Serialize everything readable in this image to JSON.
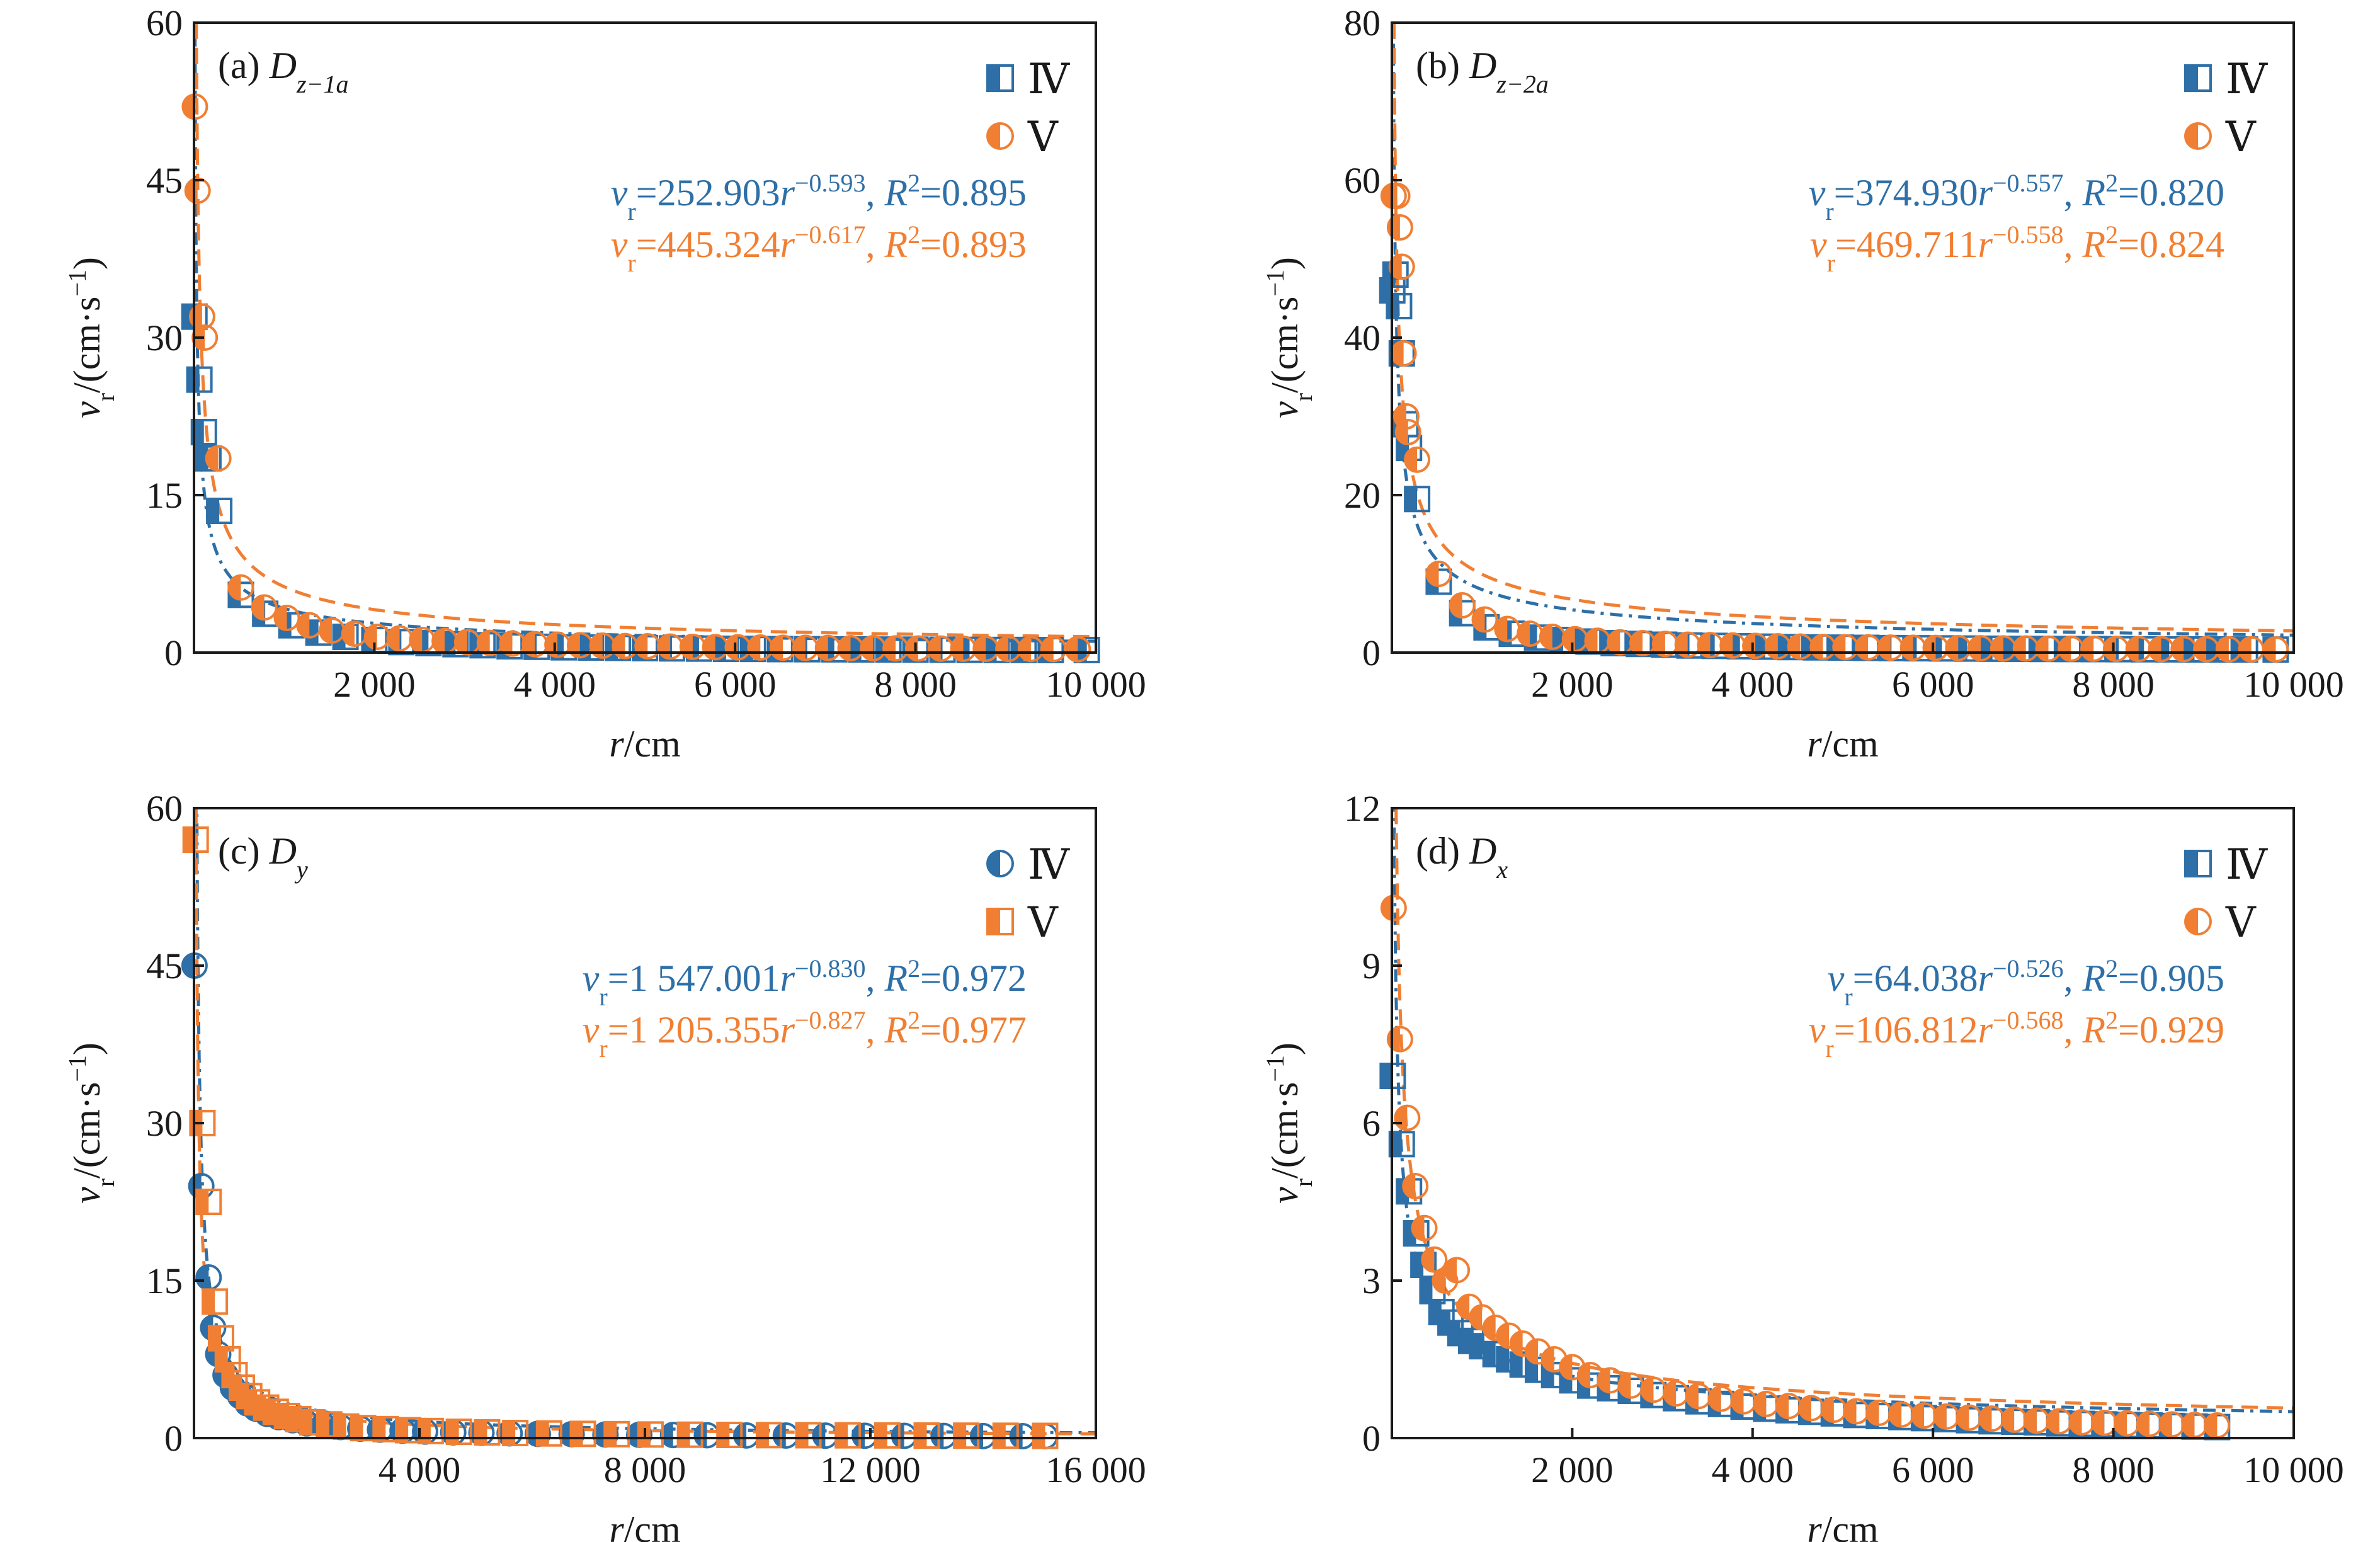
{
  "colors": {
    "series_IV": "#2E6FA7",
    "series_V": "#F07F33",
    "axis": "#1a1a1a"
  },
  "legend_labels": [
    "Ⅳ",
    "Ⅴ"
  ],
  "chart_data": [
    {
      "id": "a",
      "type": "scatter",
      "title": {
        "prefix": "(a) ",
        "var": "D",
        "sub": "z−1a"
      },
      "xlabel": {
        "var": "r",
        "rest": "/cm"
      },
      "ylabel": {
        "var": "v",
        "sub": "r",
        "rest": "/(cm·s",
        "sup": "−1",
        "close": ")"
      },
      "xlim": [
        0,
        10000
      ],
      "ylim": [
        0,
        60
      ],
      "xticks": [
        2000,
        4000,
        6000,
        8000,
        10000
      ],
      "xtick_labels": [
        "2 000",
        "4 000",
        "6 000",
        "8 000",
        "10 000"
      ],
      "yticks": [
        0,
        15,
        30,
        45,
        60
      ],
      "ytick_labels": [
        "0",
        "15",
        "30",
        "45",
        "60"
      ],
      "series": [
        {
          "name": "Ⅳ",
          "marker": "square",
          "equation": {
            "lhs": "v",
            "lhs_sub": "r",
            "coef": "=252.903",
            "var": "r",
            "exp": "−0.593",
            "r2_label": ", R",
            "r2_sup": "2",
            "r2_value": "=0.895"
          },
          "fit": {
            "a": 252.903,
            "b": -0.593,
            "dash": "dashdot"
          },
          "x": [
            5,
            60,
            110,
            160,
            280,
            520,
            790,
            1080,
            1380,
            1680,
            2000,
            2300,
            2600,
            2900,
            3200,
            3500,
            3800,
            4100,
            4400,
            4700,
            5000,
            5300,
            5600,
            5900,
            6200,
            6500,
            6800,
            7100,
            7400,
            7700,
            8000,
            8300,
            8600,
            8900,
            9200,
            9500,
            9900
          ],
          "y": [
            32,
            26,
            21,
            18.5,
            13.5,
            5.5,
            3.7,
            2.6,
            1.9,
            1.5,
            1.2,
            1.0,
            0.9,
            0.8,
            0.7,
            0.6,
            0.55,
            0.5,
            0.48,
            0.45,
            0.42,
            0.4,
            0.38,
            0.36,
            0.35,
            0.33,
            0.32,
            0.31,
            0.3,
            0.29,
            0.28,
            0.27,
            0.26,
            0.25,
            0.25,
            0.24,
            0.24
          ]
        },
        {
          "name": "Ⅴ",
          "marker": "circle",
          "equation": {
            "lhs": "v",
            "lhs_sub": "r",
            "coef": "=445.324",
            "var": "r",
            "exp": "−0.617",
            "r2_label": ", R",
            "r2_sup": "2",
            "r2_value": "=0.893"
          },
          "fit": {
            "a": 445.324,
            "b": -0.617,
            "dash": "dash"
          },
          "x": [
            10,
            40,
            90,
            120,
            270,
            520,
            780,
            1030,
            1280,
            1530,
            1780,
            2030,
            2280,
            2530,
            2780,
            3030,
            3280,
            3530,
            3780,
            4030,
            4280,
            4530,
            4780,
            5030,
            5280,
            5530,
            5780,
            6030,
            6280,
            6530,
            6780,
            7030,
            7280,
            7530,
            7780,
            8030,
            8280,
            8530,
            8780,
            9030,
            9280,
            9530,
            9800
          ],
          "y": [
            52,
            44,
            32,
            30,
            18.5,
            6.2,
            4.3,
            3.3,
            2.6,
            2.1,
            1.8,
            1.5,
            1.35,
            1.2,
            1.1,
            1.0,
            0.92,
            0.86,
            0.8,
            0.75,
            0.7,
            0.66,
            0.62,
            0.6,
            0.57,
            0.55,
            0.52,
            0.5,
            0.48,
            0.46,
            0.45,
            0.44,
            0.42,
            0.41,
            0.4,
            0.39,
            0.38,
            0.37,
            0.36,
            0.35,
            0.34,
            0.33,
            0.32
          ]
        }
      ]
    },
    {
      "id": "b",
      "type": "scatter",
      "title": {
        "prefix": "(b) ",
        "var": "D",
        "sub": "z−2a"
      },
      "xlabel": {
        "var": "r",
        "rest": "/cm"
      },
      "ylabel": {
        "var": "v",
        "sub": "r",
        "rest": "/(cm·s",
        "sup": "−1",
        "close": ")"
      },
      "xlim": [
        0,
        10000
      ],
      "ylim": [
        0,
        80
      ],
      "xticks": [
        2000,
        4000,
        6000,
        8000,
        10000
      ],
      "xtick_labels": [
        "2 000",
        "4 000",
        "6 000",
        "8 000",
        "10 000"
      ],
      "yticks": [
        0,
        20,
        40,
        60,
        80
      ],
      "ytick_labels": [
        "0",
        "20",
        "40",
        "60",
        "80"
      ],
      "series": [
        {
          "name": "Ⅳ",
          "marker": "square",
          "equation": {
            "lhs": "v",
            "lhs_sub": "r",
            "coef": "=374.930",
            "var": "r",
            "exp": "−0.557",
            "r2_label": ", R",
            "r2_sup": "2",
            "r2_value": "=0.820"
          },
          "fit": {
            "a": 374.93,
            "b": -0.557,
            "dash": "dashdot"
          },
          "x": [
            5,
            40,
            80,
            110,
            150,
            190,
            280,
            520,
            780,
            1050,
            1330,
            1610,
            1900,
            2180,
            2460,
            2740,
            3020,
            3300,
            3580,
            3860,
            4140,
            4420,
            4700,
            4980,
            5260,
            5540,
            5820,
            6100,
            6380,
            6660,
            6940,
            7220,
            7500,
            7780,
            8060,
            8340,
            8620,
            8900,
            9180,
            9460,
            9800
          ],
          "y": [
            46,
            48,
            44,
            38,
            29,
            26,
            19.5,
            9,
            5,
            3.2,
            2.4,
            1.9,
            1.6,
            1.4,
            1.2,
            1.1,
            1.0,
            0.9,
            0.85,
            0.8,
            0.75,
            0.7,
            0.66,
            0.63,
            0.6,
            0.57,
            0.55,
            0.53,
            0.51,
            0.49,
            0.47,
            0.46,
            0.45,
            0.44,
            0.43,
            0.42,
            0.41,
            0.4,
            0.4,
            0.39,
            0.38
          ]
        },
        {
          "name": "Ⅴ",
          "marker": "circle",
          "equation": {
            "lhs": "v",
            "lhs_sub": "r",
            "coef": "=469.711",
            "var": "r",
            "exp": "−0.558",
            "r2_label": ", R",
            "r2_sup": "2",
            "r2_value": "=0.824"
          },
          "fit": {
            "a": 469.711,
            "b": -0.558,
            "dash": "dash"
          },
          "x": [
            20,
            60,
            90,
            110,
            130,
            160,
            180,
            280,
            520,
            780,
            1030,
            1280,
            1530,
            1780,
            2030,
            2280,
            2530,
            2780,
            3030,
            3280,
            3530,
            3780,
            4030,
            4280,
            4530,
            4780,
            5030,
            5280,
            5530,
            5780,
            6030,
            6280,
            6530,
            6780,
            7030,
            7280,
            7530,
            7780,
            8030,
            8280,
            8530,
            8780,
            9030,
            9280,
            9530,
            9800
          ],
          "y": [
            58,
            58,
            54,
            49,
            38,
            30,
            28,
            24.5,
            10,
            6,
            4.2,
            3.0,
            2.4,
            2.0,
            1.7,
            1.5,
            1.3,
            1.2,
            1.1,
            1.0,
            0.95,
            0.9,
            0.85,
            0.8,
            0.76,
            0.72,
            0.69,
            0.66,
            0.63,
            0.61,
            0.59,
            0.57,
            0.55,
            0.53,
            0.52,
            0.5,
            0.49,
            0.48,
            0.47,
            0.46,
            0.45,
            0.44,
            0.43,
            0.42,
            0.41,
            0.4
          ]
        }
      ]
    },
    {
      "id": "c",
      "type": "scatter",
      "title": {
        "prefix": "(c) ",
        "var": "D",
        "sub": "y"
      },
      "xlabel": {
        "var": "r",
        "rest": "/cm"
      },
      "ylabel": {
        "var": "v",
        "sub": "r",
        "rest": "/(cm·s",
        "sup": "−1",
        "close": ")"
      },
      "xlim": [
        0,
        16000
      ],
      "ylim": [
        0,
        60
      ],
      "xticks": [
        4000,
        8000,
        12000,
        16000
      ],
      "xtick_labels": [
        "4 000",
        "8 000",
        "12 000",
        "16 000"
      ],
      "yticks": [
        0,
        15,
        30,
        45,
        60
      ],
      "ytick_labels": [
        "0",
        "15",
        "30",
        "45",
        "60"
      ],
      "series": [
        {
          "name": "Ⅳ",
          "marker": "circle",
          "equation": {
            "lhs": "v",
            "lhs_sub": "r",
            "coef": "=1 547.001",
            "var": "r",
            "exp": "−0.830",
            "r2_label": ", R",
            "r2_sup": "2",
            "r2_value": "=0.972"
          },
          "fit": {
            "a": 1547.001,
            "b": -0.83,
            "dash": "dashdot"
          },
          "x": [
            10,
            130,
            260,
            340,
            430,
            560,
            690,
            820,
            950,
            1100,
            1300,
            1500,
            1750,
            2000,
            2300,
            2600,
            2950,
            3300,
            3700,
            4100,
            4600,
            5100,
            5600,
            6100,
            6700,
            7300,
            7900,
            8500,
            9100,
            9800,
            10500,
            11200,
            11900,
            12600,
            13300,
            14000,
            14700,
            15100
          ],
          "y": [
            45,
            24,
            15.3,
            10.5,
            8,
            6,
            4.8,
            4.0,
            3.3,
            2.8,
            2.3,
            2.0,
            1.7,
            1.4,
            1.2,
            1.05,
            0.9,
            0.8,
            0.7,
            0.62,
            0.55,
            0.5,
            0.45,
            0.4,
            0.37,
            0.34,
            0.31,
            0.29,
            0.27,
            0.25,
            0.24,
            0.23,
            0.22,
            0.21,
            0.2,
            0.19,
            0.18,
            0.18
          ]
        },
        {
          "name": "Ⅴ",
          "marker": "square",
          "equation": {
            "lhs": "v",
            "lhs_sub": "r",
            "coef": "=1 205.355",
            "var": "r",
            "exp": "−0.827",
            "r2_label": ", R",
            "r2_sup": "2",
            "r2_value": "=0.977"
          },
          "fit": {
            "a": 1205.355,
            "b": -0.827,
            "dash": "dash"
          },
          "x": [
            30,
            150,
            260,
            370,
            480,
            600,
            720,
            850,
            980,
            1120,
            1280,
            1450,
            1650,
            1850,
            2100,
            2400,
            2700,
            3000,
            3400,
            3800,
            4200,
            4700,
            5200,
            5700,
            6300,
            6900,
            7500,
            8100,
            8800,
            9500,
            10200,
            10900,
            11600,
            12300,
            13000,
            13700,
            14400,
            15100
          ],
          "y": [
            57,
            30,
            22.5,
            13,
            9.5,
            7.5,
            6.0,
            4.8,
            4.0,
            3.4,
            2.9,
            2.5,
            2.1,
            1.8,
            1.5,
            1.3,
            1.1,
            0.95,
            0.85,
            0.75,
            0.67,
            0.6,
            0.54,
            0.48,
            0.44,
            0.4,
            0.37,
            0.34,
            0.32,
            0.3,
            0.28,
            0.27,
            0.26,
            0.25,
            0.24,
            0.23,
            0.22,
            0.21
          ]
        }
      ]
    },
    {
      "id": "d",
      "type": "scatter",
      "title": {
        "prefix": "(d) ",
        "var": "D",
        "sub": "x"
      },
      "xlabel": {
        "var": "r",
        "rest": "/cm"
      },
      "ylabel": {
        "var": "v",
        "sub": "r",
        "rest": "/(cm·s",
        "sup": "−1",
        "close": ")"
      },
      "xlim": [
        0,
        10000
      ],
      "ylim": [
        0,
        12
      ],
      "xticks": [
        2000,
        4000,
        6000,
        8000,
        10000
      ],
      "xtick_labels": [
        "2 000",
        "4 000",
        "6 000",
        "8 000",
        "10 000"
      ],
      "yticks": [
        0,
        3,
        6,
        9,
        12
      ],
      "ytick_labels": [
        "0",
        "3",
        "6",
        "9",
        "12"
      ],
      "series": [
        {
          "name": "Ⅳ",
          "marker": "square",
          "equation": {
            "lhs": "v",
            "lhs_sub": "r",
            "coef": "=64.038",
            "var": "r",
            "exp": "−0.526",
            "r2_label": ", R",
            "r2_sup": "2",
            "r2_value": "=0.905"
          },
          "fit": {
            "a": 64.038,
            "b": -0.526,
            "dash": "dashdot"
          },
          "x": [
            10,
            110,
            190,
            270,
            350,
            450,
            550,
            650,
            760,
            880,
            1000,
            1150,
            1300,
            1450,
            1620,
            1800,
            2000,
            2200,
            2420,
            2650,
            2900,
            3150,
            3400,
            3650,
            3900,
            4150,
            4400,
            4650,
            4900,
            5150,
            5400,
            5650,
            5900,
            6150,
            6400,
            6650,
            6900,
            7150,
            7400,
            7650,
            7900,
            8150,
            8400,
            8650,
            8900,
            9150
          ],
          "y": [
            6.9,
            5.6,
            4.7,
            3.9,
            3.3,
            2.8,
            2.4,
            2.2,
            2.0,
            1.85,
            1.75,
            1.6,
            1.5,
            1.4,
            1.3,
            1.2,
            1.1,
            1.0,
            0.95,
            0.9,
            0.82,
            0.76,
            0.7,
            0.65,
            0.6,
            0.56,
            0.53,
            0.5,
            0.47,
            0.44,
            0.42,
            0.4,
            0.38,
            0.36,
            0.34,
            0.32,
            0.31,
            0.3,
            0.28,
            0.27,
            0.26,
            0.25,
            0.24,
            0.23,
            0.22,
            0.21
          ]
        },
        {
          "name": "Ⅴ",
          "marker": "circle",
          "equation": {
            "lhs": "v",
            "lhs_sub": "r",
            "coef": "=106.812",
            "var": "r",
            "exp": "−0.568",
            "r2_label": ", R",
            "r2_sup": "2",
            "r2_value": "=0.929"
          },
          "fit": {
            "a": 106.812,
            "b": -0.568,
            "dash": "dash"
          },
          "x": [
            20,
            90,
            170,
            260,
            360,
            470,
            590,
            720,
            860,
            1000,
            1150,
            1300,
            1450,
            1620,
            1800,
            2000,
            2200,
            2420,
            2650,
            2900,
            3150,
            3400,
            3650,
            3900,
            4150,
            4400,
            4650,
            4900,
            5150,
            5400,
            5650,
            5900,
            6150,
            6400,
            6650,
            6900,
            7150,
            7400,
            7650,
            7900,
            8150,
            8400,
            8650,
            8900,
            9150
          ],
          "y": [
            10.1,
            7.6,
            6.1,
            4.8,
            4.0,
            3.4,
            3.0,
            3.2,
            2.5,
            2.3,
            2.1,
            1.95,
            1.8,
            1.65,
            1.5,
            1.35,
            1.2,
            1.1,
            1.0,
            0.92,
            0.85,
            0.8,
            0.75,
            0.7,
            0.65,
            0.61,
            0.57,
            0.54,
            0.51,
            0.48,
            0.45,
            0.43,
            0.41,
            0.39,
            0.37,
            0.35,
            0.33,
            0.32,
            0.3,
            0.29,
            0.28,
            0.27,
            0.26,
            0.25,
            0.24
          ]
        }
      ]
    }
  ]
}
